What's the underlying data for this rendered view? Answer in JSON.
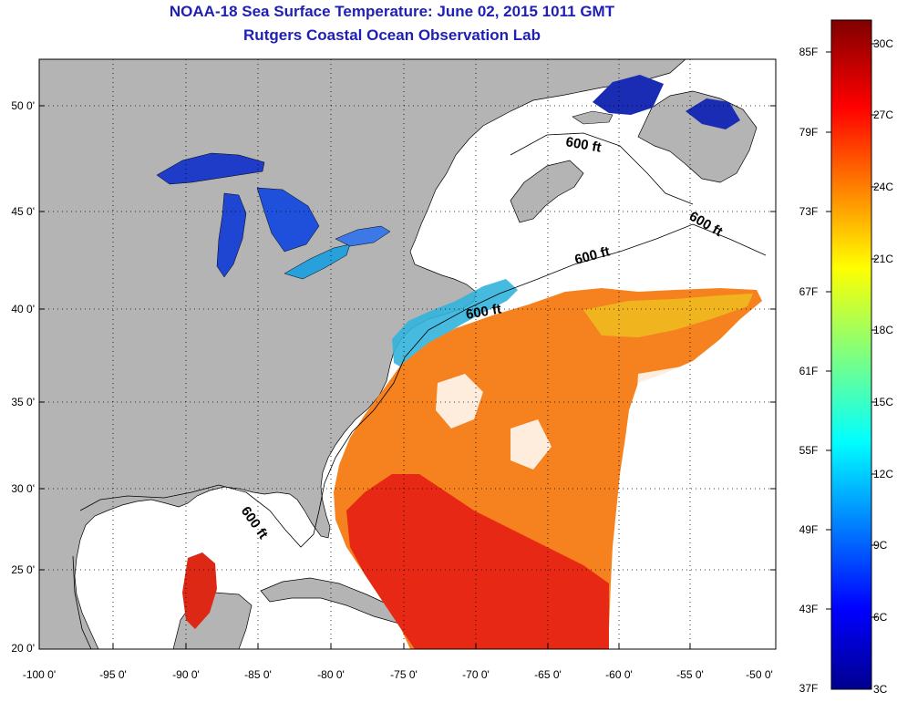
{
  "title": "NOAA-18 Sea Surface Temperature:  June 02, 2015 1011 GMT",
  "subtitle": "Rutgers Coastal Ocean Observation Lab",
  "map": {
    "lat_labels": [
      "50 0'",
      "45 0'",
      "40 0'",
      "35 0'",
      "30 0'",
      "25 0'",
      "20 0'"
    ],
    "lon_labels": [
      "-100 0'",
      "-95 0'",
      "-90 0'",
      "-85 0'",
      "-80 0'",
      "-75 0'",
      "-70 0'",
      "-65 0'",
      "-60 0'",
      "-55 0'",
      "-50 0'"
    ],
    "isobath_labels": [
      "600 ft",
      "600 ft",
      "600 ft",
      "600 ft",
      "600 ft"
    ],
    "land_color": "#b4b4b4",
    "cloud_color": "#ffffff",
    "grid": "dotted"
  },
  "colorbar": {
    "fahrenheit_labels": [
      "85F",
      "79F",
      "73F",
      "67F",
      "61F",
      "55F",
      "49F",
      "43F",
      "37F"
    ],
    "celsius_labels": [
      "30C",
      "27C",
      "24C",
      "21C",
      "18C",
      "15C",
      "12C",
      "9C",
      "6C",
      "3C"
    ],
    "colormap": "jet",
    "range_celsius": [
      3,
      31
    ]
  }
}
